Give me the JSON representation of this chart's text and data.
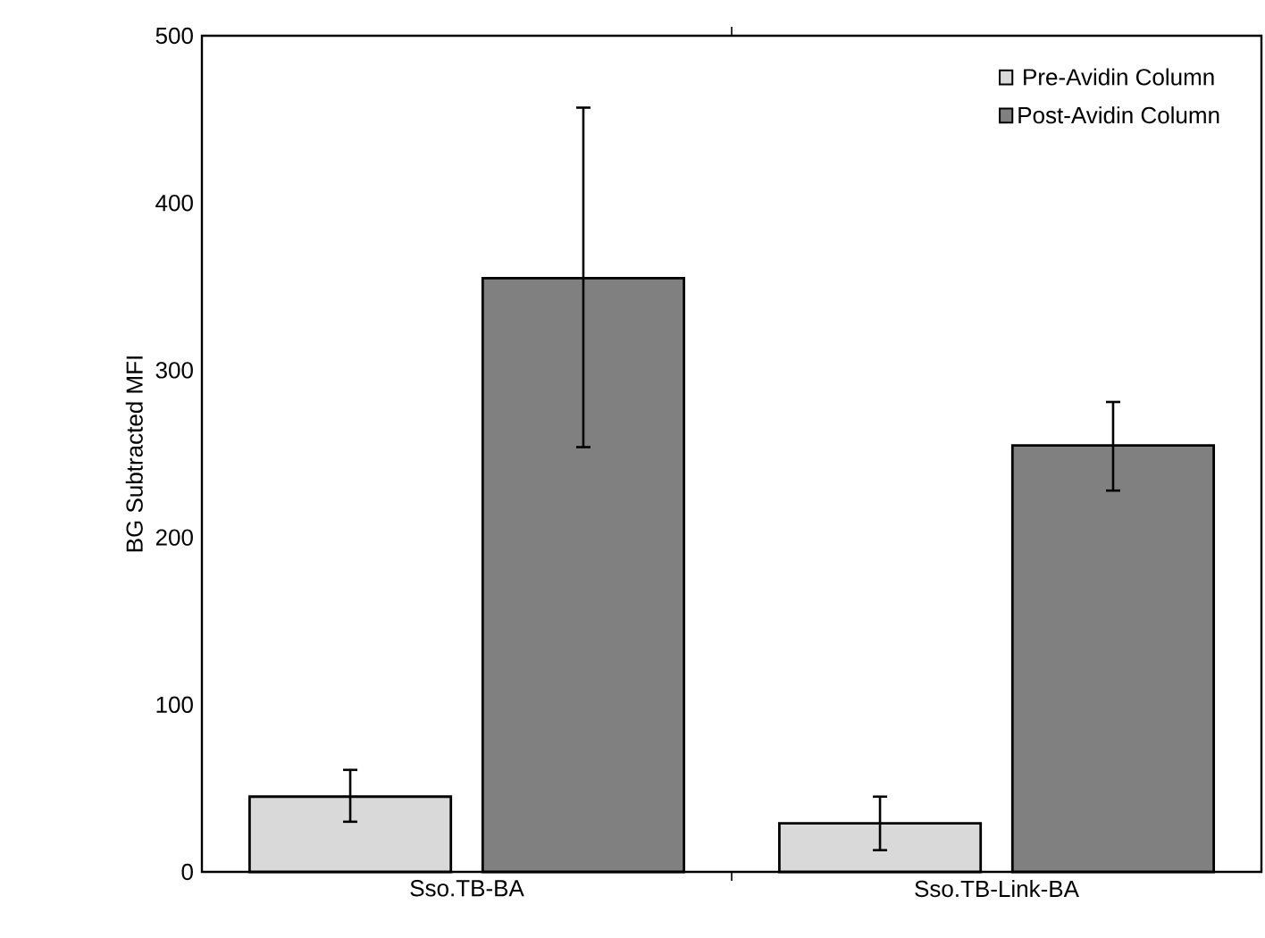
{
  "chart_data": {
    "type": "bar",
    "ylabel": "BG Subtracted MFI",
    "categories": [
      "Sso.TB-BA",
      "Sso.TB-Link-BA"
    ],
    "series": [
      {
        "name": "Pre-Avidin Column",
        "color": "#d9d9d9",
        "values": [
          45,
          29
        ],
        "errors": [
          [
            30,
            61
          ],
          [
            13,
            45
          ]
        ]
      },
      {
        "name": "Post-Avidin Column",
        "color": "#808080",
        "values": [
          355,
          255
        ],
        "errors": [
          [
            254,
            457
          ],
          [
            228,
            281
          ]
        ]
      }
    ],
    "ylim": [
      0,
      500
    ],
    "yticks": [
      0,
      100,
      200,
      300,
      400,
      500
    ],
    "legend": "top right"
  }
}
